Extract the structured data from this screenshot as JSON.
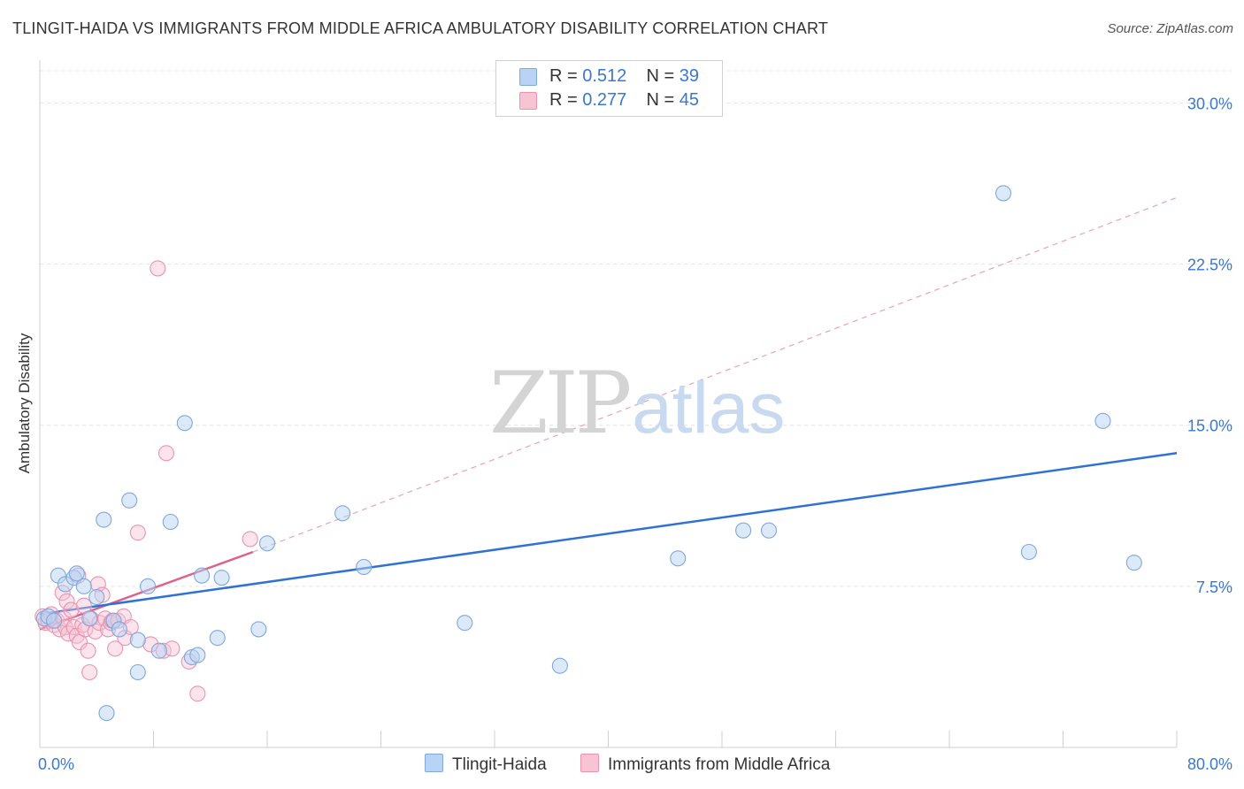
{
  "header": {
    "title": "TLINGIT-HAIDA VS IMMIGRANTS FROM MIDDLE AFRICA AMBULATORY DISABILITY CORRELATION CHART",
    "source": "Source: ZipAtlas.com"
  },
  "watermark": {
    "zip": "ZIP",
    "atlas": "atlas"
  },
  "legend": {
    "series1": {
      "r_label": "R = ",
      "r_value": "0.512",
      "n_label": "N = ",
      "n_value": "39"
    },
    "series2": {
      "r_label": "R = ",
      "r_value": "0.277",
      "n_label": "N = ",
      "n_value": "45"
    }
  },
  "bottom_legend": {
    "series1": "Tlingit-Haida",
    "series2": "Immigrants from Middle Africa"
  },
  "colors": {
    "blue_fill": "#b8d3f4",
    "blue_stroke": "#7fa8db",
    "blue_line": "#2f72d3",
    "pink_fill": "#f7c4d4",
    "pink_stroke": "#ea93b0",
    "pink_line": "#e0608c",
    "axis_text": "#3a78d0",
    "grid": "#e3e3e3"
  },
  "chart_data": {
    "type": "scatter",
    "title": "TLINGIT-HAIDA VS IMMIGRANTS FROM MIDDLE AFRICA AMBULATORY DISABILITY CORRELATION CHART",
    "xlabel": "",
    "ylabel": "Ambulatory Disability",
    "xlim": [
      0,
      80
    ],
    "ylim": [
      0,
      31.5
    ],
    "x_tick_labels": [
      "0.0%",
      "80.0%"
    ],
    "y_ticks": [
      7.5,
      15.0,
      22.5,
      30.0
    ],
    "y_tick_labels": [
      "7.5%",
      "15.0%",
      "22.5%",
      "30.0%"
    ],
    "grid": true,
    "legend_position": "top-center",
    "series": [
      {
        "name": "Tlingit-Haida",
        "color": "blue",
        "R": 0.512,
        "N": 39,
        "points": [
          [
            0.3,
            6.0
          ],
          [
            0.6,
            6.1
          ],
          [
            1.0,
            5.9
          ],
          [
            1.3,
            8.0
          ],
          [
            1.8,
            7.6
          ],
          [
            2.4,
            7.9
          ],
          [
            2.6,
            8.1
          ],
          [
            3.1,
            7.5
          ],
          [
            3.5,
            6.0
          ],
          [
            4.0,
            7.0
          ],
          [
            4.5,
            10.6
          ],
          [
            4.7,
            1.6
          ],
          [
            5.2,
            5.9
          ],
          [
            5.6,
            5.5
          ],
          [
            6.3,
            11.5
          ],
          [
            6.9,
            3.5
          ],
          [
            6.9,
            5.0
          ],
          [
            7.6,
            7.5
          ],
          [
            8.4,
            4.5
          ],
          [
            9.2,
            10.5
          ],
          [
            10.2,
            15.1
          ],
          [
            10.7,
            4.2
          ],
          [
            11.1,
            4.3
          ],
          [
            11.4,
            8.0
          ],
          [
            12.5,
            5.1
          ],
          [
            12.8,
            7.9
          ],
          [
            15.4,
            5.5
          ],
          [
            16.0,
            9.5
          ],
          [
            21.3,
            10.9
          ],
          [
            22.8,
            8.4
          ],
          [
            29.9,
            5.8
          ],
          [
            36.6,
            3.8
          ],
          [
            44.9,
            8.8
          ],
          [
            49.5,
            10.1
          ],
          [
            51.3,
            10.1
          ],
          [
            67.8,
            25.8
          ],
          [
            69.6,
            9.1
          ],
          [
            74.8,
            15.2
          ],
          [
            77.0,
            8.6
          ]
        ],
        "trend": {
          "x0": 0,
          "y0": 6.2,
          "x1": 80,
          "y1": 13.7
        }
      },
      {
        "name": "Immigrants from Middle Africa",
        "color": "pink",
        "R": 0.277,
        "N": 45,
        "points": [
          [
            0.2,
            6.1
          ],
          [
            0.4,
            5.8
          ],
          [
            0.6,
            5.9
          ],
          [
            0.8,
            6.2
          ],
          [
            1.0,
            5.7
          ],
          [
            1.2,
            5.9
          ],
          [
            1.4,
            5.5
          ],
          [
            1.6,
            7.2
          ],
          [
            1.7,
            6.0
          ],
          [
            1.8,
            5.6
          ],
          [
            1.9,
            6.8
          ],
          [
            2.0,
            5.3
          ],
          [
            2.2,
            6.4
          ],
          [
            2.4,
            5.6
          ],
          [
            2.6,
            5.2
          ],
          [
            2.7,
            8.0
          ],
          [
            2.8,
            4.9
          ],
          [
            3.0,
            5.7
          ],
          [
            3.1,
            6.6
          ],
          [
            3.2,
            5.5
          ],
          [
            3.4,
            4.5
          ],
          [
            3.5,
            3.5
          ],
          [
            3.6,
            6.0
          ],
          [
            3.9,
            5.4
          ],
          [
            4.1,
            7.6
          ],
          [
            4.2,
            5.8
          ],
          [
            4.4,
            7.1
          ],
          [
            4.6,
            6.0
          ],
          [
            4.8,
            5.5
          ],
          [
            5.0,
            5.8
          ],
          [
            5.1,
            5.9
          ],
          [
            5.3,
            4.6
          ],
          [
            5.5,
            5.9
          ],
          [
            5.9,
            6.1
          ],
          [
            6.0,
            5.1
          ],
          [
            6.4,
            5.6
          ],
          [
            6.9,
            10.0
          ],
          [
            7.8,
            4.8
          ],
          [
            8.3,
            22.3
          ],
          [
            8.7,
            4.5
          ],
          [
            8.9,
            13.7
          ],
          [
            9.3,
            4.6
          ],
          [
            10.5,
            4.0
          ],
          [
            11.1,
            2.5
          ],
          [
            14.8,
            9.7
          ]
        ],
        "trend_solid": {
          "x0": 0,
          "y0": 5.5,
          "x1": 15.0,
          "y1": 9.1
        },
        "trend_dashed": {
          "x0": 15.0,
          "y0": 9.1,
          "x1": 80,
          "y1": 25.6
        }
      }
    ]
  }
}
